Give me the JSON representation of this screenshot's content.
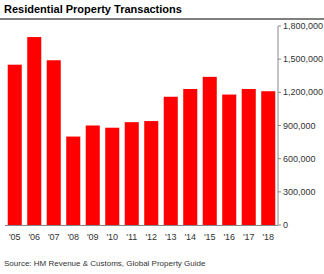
{
  "chart_data": {
    "type": "bar",
    "title": "Residential Property Transactions",
    "subtitle": "Source: HM Revenue & Customs, Global Property Guide",
    "categories": [
      "'05",
      "'06",
      "'07",
      "'08",
      "'09",
      "'10",
      "'11",
      "'12",
      "'13",
      "'14",
      "'15",
      "'16",
      "'17",
      "'18"
    ],
    "values": [
      1450000,
      1700000,
      1490000,
      800000,
      900000,
      880000,
      930000,
      940000,
      1160000,
      1230000,
      1340000,
      1180000,
      1230000,
      1210000
    ],
    "color": "#ff0000",
    "ylim": [
      0,
      1800000
    ],
    "yticks": [
      0,
      {
        "value": 300000,
        "label": "300,000"
      },
      {
        "value": 600000,
        "label": "600,000"
      },
      {
        "value": 900000,
        "label": "900,000"
      },
      {
        "value": 1200000,
        "label": "1,200,000"
      },
      {
        "value": 1500000,
        "label": "1,500,000"
      },
      {
        "value": 1800000,
        "label": "1,800,000"
      }
    ],
    "grid": false
  }
}
